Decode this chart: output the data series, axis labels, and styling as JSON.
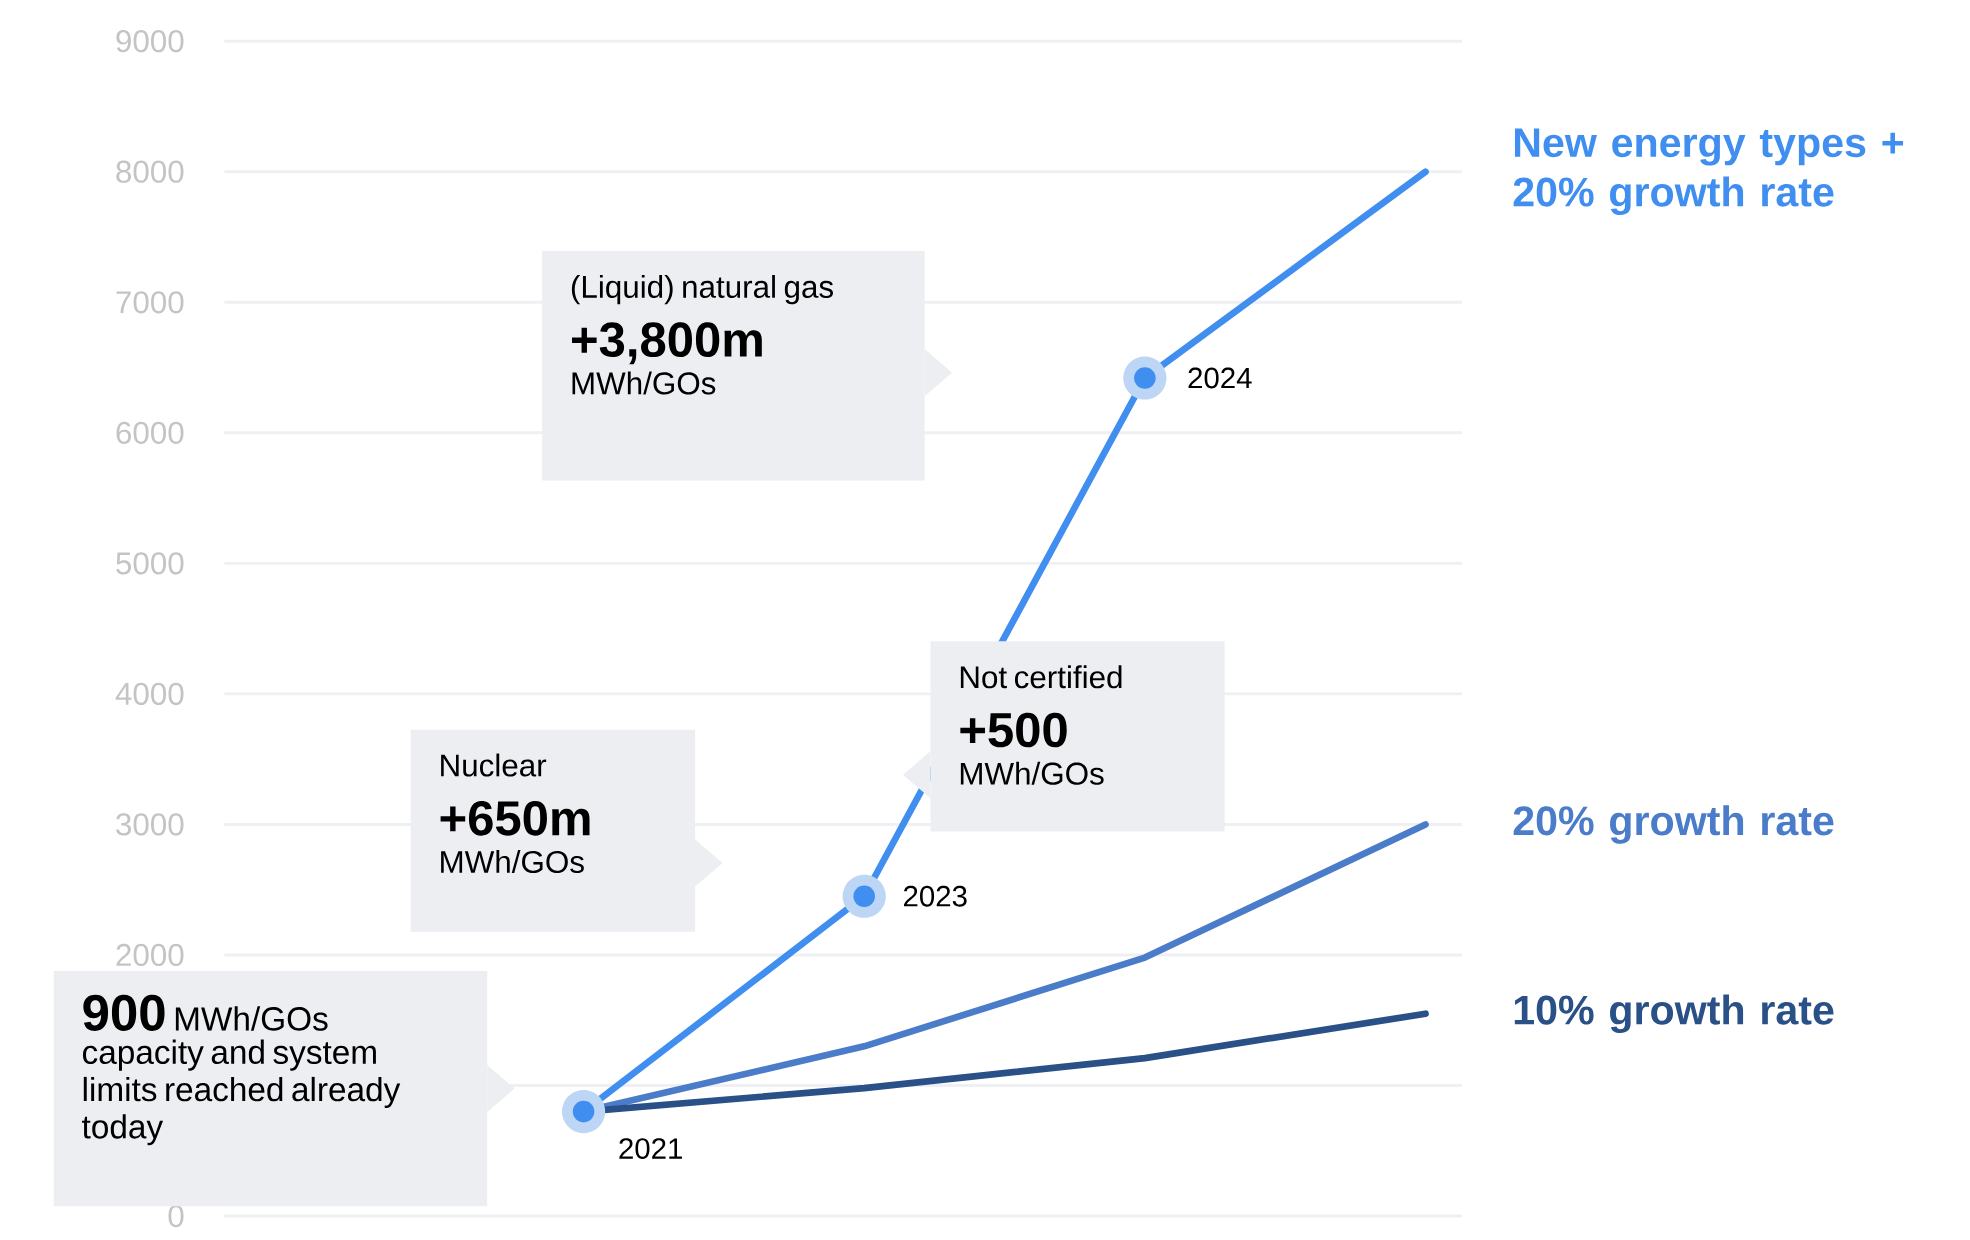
{
  "chart_data": {
    "type": "line",
    "categories": [
      null,
      null,
      null,
      null
    ],
    "ylim": [
      0,
      9000
    ],
    "yticks": [
      0,
      {
        "value": 1000,
        "label": null
      },
      2000,
      3000,
      4000,
      5000,
      6000,
      7000,
      8000,
      9000
    ],
    "grid": "y",
    "line_style": "solid",
    "series": [
      {
        "name": "New energy types + 20% growth rate",
        "color": "#3f8ef0",
        "values": [
          800,
          2450,
          6420,
          8000
        ]
      },
      {
        "name": "20% growth rate",
        "color": "#4a7cc9",
        "values": [
          800,
          1300,
          1980,
          3000
        ]
      },
      {
        "name": "10% growth rate",
        "color": "#2a5088",
        "values": [
          800,
          980,
          1210,
          1550
        ]
      }
    ],
    "annotations": [
      "(Liquid) natural gas",
      "+3,800m",
      "MWh/GOs",
      "Not certified",
      "+500",
      "MWh/GOs",
      "Nuclear",
      "+650m",
      "MWh/GOs",
      "900",
      "MWh/GOs",
      "capacity and system",
      "limits reached already",
      "today",
      "2021",
      "2023",
      "2024"
    ]
  }
}
